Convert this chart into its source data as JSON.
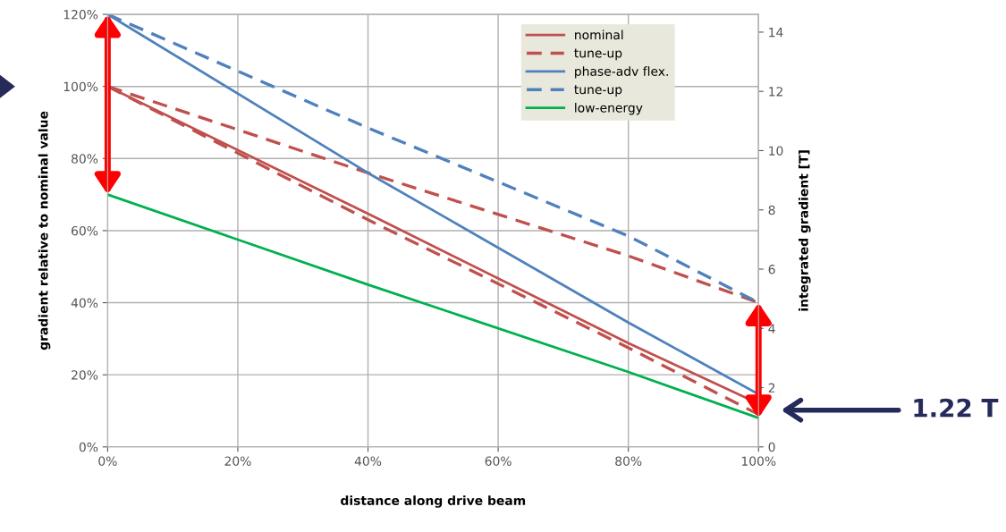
{
  "chart_data": {
    "type": "line",
    "xlabel": "distance along drive beam",
    "ylabel": "gradient relative to nominal value",
    "y2label": "integrated gradient [T]",
    "x": [
      0,
      40,
      80,
      100
    ],
    "series": [
      {
        "name": "nominal",
        "color": "#c0504d",
        "line_style": "solid",
        "values": [
          100,
          64.7,
          28.8,
          12
        ]
      },
      {
        "name": "tune-up",
        "color": "#c0504d",
        "line_style": "dashed",
        "values": [
          100,
          76,
          53,
          40
        ]
      },
      {
        "color": "#c0504d",
        "line_style": "dashed",
        "values": [
          100,
          63,
          27.5,
          9
        ]
      },
      {
        "name": "phase-adv flex.",
        "color": "#4f81bd",
        "line_style": "solid",
        "values": [
          120,
          76,
          34.5,
          14.6
        ]
      },
      {
        "name": "tune-up",
        "color": "#4f81bd",
        "line_style": "dashed",
        "values": [
          120,
          88.5,
          58.5,
          40
        ]
      },
      {
        "name": "low-energy",
        "color": "#00b050",
        "line_style": "solid",
        "values": [
          70,
          45,
          20.8,
          8
        ]
      }
    ],
    "xlim": [
      0,
      100
    ],
    "xticks": [
      {
        "value": 0,
        "label": "0%"
      },
      {
        "value": 20,
        "label": "20%"
      },
      {
        "value": 40,
        "label": "40%"
      },
      {
        "value": 60,
        "label": "60%"
      },
      {
        "value": 80,
        "label": "80%"
      },
      {
        "value": 100,
        "label": "100%"
      }
    ],
    "ylim": [
      0,
      120
    ],
    "yticks": [
      {
        "value": 0,
        "label": "0%"
      },
      {
        "value": 20,
        "label": "20%"
      },
      {
        "value": 40,
        "label": "40%"
      },
      {
        "value": 60,
        "label": "60%"
      },
      {
        "value": 80,
        "label": "80%"
      },
      {
        "value": 100,
        "label": "100%"
      },
      {
        "value": 120,
        "label": "120%"
      }
    ],
    "y2lim": [
      0,
      14.6
    ],
    "y2ticks": [
      0,
      2,
      4,
      6,
      8,
      10,
      12,
      14
    ],
    "annotations": [
      "1.22 T"
    ],
    "grid": true,
    "legend": "top right",
    "marker": "none"
  }
}
